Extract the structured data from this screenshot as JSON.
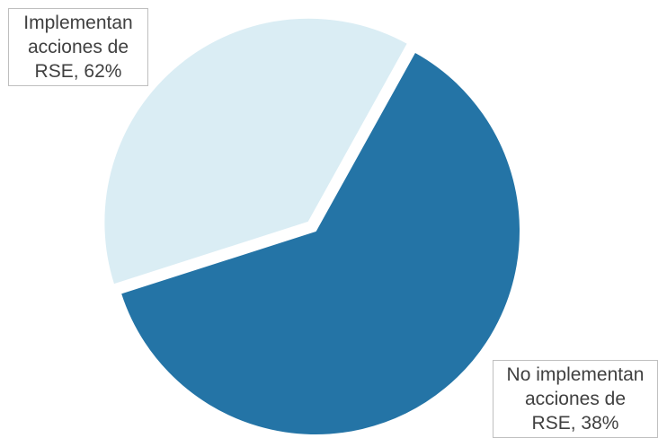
{
  "chart_data": {
    "type": "pie",
    "slices": [
      {
        "label_lines": [
          "Implementan",
          "acciones de",
          "RSE, 62%"
        ],
        "value": 62,
        "color": "#2474a6"
      },
      {
        "label_lines": [
          "No implementan",
          "acciones de",
          "RSE, 38%"
        ],
        "value": 38,
        "color": "#daedf4"
      }
    ],
    "legend": "none"
  }
}
